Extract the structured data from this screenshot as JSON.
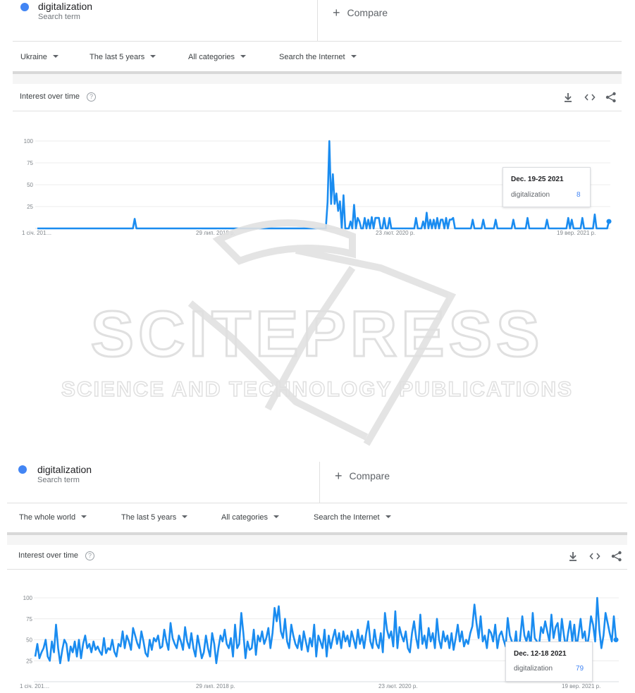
{
  "panels": [
    {
      "term": {
        "name": "digitalization",
        "subtitle": "Search term",
        "color": "#4285f4"
      },
      "compare_label": "Compare",
      "filters": {
        "region": "Ukraine",
        "period": "The last 5 years",
        "category": "All categories",
        "search_type": "Search the Internet"
      },
      "section_title": "Interest over time",
      "tooltip": {
        "date": "Dec. 19-25 2021",
        "term": "digitalization",
        "value": "8"
      },
      "chart_data": {
        "type": "line",
        "title": "Interest over time",
        "x_tick_labels": [
          "1 січ. 201…",
          "29 лип. 2018 р.",
          "23 лют. 2020 р.",
          "19 вер. 2021 р."
        ],
        "y_tick_labels": [
          "100",
          "75",
          "50",
          "25"
        ],
        "ylim": [
          0,
          100
        ],
        "grid": true,
        "series": [
          {
            "name": "digitalization",
            "color": "#1a8cf0",
            "values": [
              0,
              0,
              0,
              0,
              0,
              0,
              0,
              0,
              0,
              0,
              0,
              0,
              0,
              0,
              0,
              0,
              0,
              0,
              0,
              0,
              0,
              0,
              0,
              0,
              0,
              0,
              0,
              0,
              0,
              0,
              0,
              0,
              0,
              0,
              0,
              0,
              0,
              0,
              0,
              0,
              0,
              0,
              0,
              0,
              0,
              0,
              0,
              0,
              0,
              0,
              0,
              0,
              0,
              0,
              0,
              11,
              0,
              0,
              0,
              0,
              0,
              0,
              0,
              0,
              0,
              0,
              0,
              0,
              0,
              0,
              0,
              0,
              0,
              0,
              0,
              0,
              0,
              0,
              0,
              0,
              0,
              0,
              0,
              0,
              0,
              0,
              0,
              0,
              0,
              0,
              0,
              0,
              0,
              0,
              0,
              0,
              0,
              0,
              0,
              0,
              0,
              0,
              0,
              0,
              0,
              0,
              0,
              0,
              0,
              0,
              0,
              0,
              0,
              0,
              0,
              0,
              0,
              0,
              0,
              0,
              0,
              0,
              0,
              0,
              0,
              0,
              0,
              0,
              0,
              0,
              0,
              0,
              0,
              0,
              0,
              0,
              0,
              0,
              0,
              0,
              0,
              0,
              0,
              0,
              0,
              0,
              0,
              0,
              0,
              0,
              0,
              0,
              0,
              0,
              0,
              0,
              0,
              0,
              0,
              0,
              0,
              0,
              0,
              0,
              30,
              100,
              28,
              62,
              28,
              40,
              20,
              31,
              0,
              38,
              0,
              0,
              0,
              8,
              0,
              27,
              0,
              12,
              8,
              0,
              0,
              12,
              0,
              10,
              0,
              13,
              0,
              12,
              12,
              12,
              0,
              0,
              12,
              0,
              0,
              12,
              0,
              0,
              0,
              0,
              0,
              0,
              0,
              0,
              0,
              0,
              0,
              0,
              0,
              0,
              12,
              0,
              0,
              0,
              8,
              0,
              18,
              0,
              10,
              0,
              10,
              0,
              12,
              0,
              10,
              10,
              0,
              12,
              0,
              10,
              10,
              12,
              0,
              0,
              0,
              0,
              0,
              0,
              0,
              0,
              0,
              0,
              10,
              0,
              0,
              0,
              0,
              0,
              10,
              0,
              0,
              0,
              0,
              0,
              0,
              10,
              0,
              0,
              0,
              0,
              0,
              0,
              0,
              0,
              0,
              10,
              0,
              0,
              0,
              0,
              0,
              0,
              0,
              12,
              0,
              0,
              0,
              0,
              0,
              0,
              0,
              0,
              0,
              0,
              10,
              0,
              0,
              0,
              0,
              0,
              0,
              0,
              0,
              0,
              0,
              0,
              12,
              0,
              10,
              0,
              0,
              0,
              0,
              0,
              12,
              0,
              0,
              0,
              0,
              0,
              0,
              16,
              0,
              0,
              0,
              0,
              0,
              0,
              0,
              8
            ]
          }
        ]
      }
    },
    {
      "term": {
        "name": "digitalization",
        "subtitle": "Search term",
        "color": "#4285f4"
      },
      "compare_label": "Compare",
      "filters": {
        "region": "The whole world",
        "period": "The last 5 years",
        "category": "All categories",
        "search_type": "Search the Internet"
      },
      "section_title": "Interest over time",
      "tooltip": {
        "date": "Dec. 12-18 2021",
        "term": "digitalization",
        "value": "79"
      },
      "chart_data": {
        "type": "line",
        "title": "Interest over time",
        "x_tick_labels": [
          "1 січ. 201…",
          "29 лип. 2018 р.",
          "23 лют. 2020 р.",
          "19 вер. 2021 р."
        ],
        "y_tick_labels": [
          "100",
          "75",
          "50",
          "25"
        ],
        "ylim": [
          0,
          100
        ],
        "grid": true,
        "series": [
          {
            "name": "digitalization",
            "color": "#1a8cf0",
            "values": [
              30,
              45,
              28,
              35,
              40,
              50,
              30,
              25,
              48,
              35,
              68,
              40,
              22,
              38,
              50,
              45,
              25,
              42,
              35,
              48,
              30,
              50,
              28,
              45,
              55,
              40,
              45,
              35,
              48,
              38,
              42,
              36,
              32,
              52,
              34,
              40,
              38,
              50,
              36,
              30,
              45,
              42,
              60,
              40,
              55,
              48,
              38,
              64,
              55,
              46,
              40,
              60,
              48,
              34,
              30,
              50,
              38,
              52,
              48,
              55,
              40,
              42,
              62,
              48,
              38,
              70,
              52,
              45,
              40,
              55,
              48,
              38,
              65,
              48,
              40,
              58,
              40,
              30,
              55,
              42,
              28,
              35,
              55,
              40,
              30,
              58,
              45,
              22,
              40,
              55,
              48,
              62,
              45,
              40,
              52,
              30,
              68,
              40,
              45,
              82,
              58,
              28,
              48,
              38,
              40,
              62,
              32,
              55,
              48,
              60,
              45,
              52,
              64,
              40,
              58,
              88,
              72,
              90,
              60,
              52,
              75,
              48,
              40,
              68,
              55,
              45,
              40,
              55,
              38,
              60,
              48,
              36,
              52,
              42,
              68,
              30,
              55,
              48,
              40,
              62,
              30,
              55,
              40,
              52,
              62,
              45,
              58,
              40,
              60,
              48,
              55,
              42,
              60,
              50,
              40,
              62,
              45,
              55,
              40,
              58,
              72,
              48,
              40,
              62,
              45,
              40,
              58,
              35,
              82,
              62,
              52,
              60,
              42,
              84,
              40,
              65,
              55,
              48,
              60,
              40,
              35,
              58,
              72,
              52,
              40,
              80,
              45,
              55,
              40,
              64,
              48,
              58,
              40,
              75,
              50,
              40,
              60,
              48,
              55,
              40,
              58,
              38,
              52,
              68,
              48,
              60,
              42,
              50,
              45,
              58,
              66,
              92,
              70,
              52,
              78,
              48,
              55,
              40,
              62,
              58,
              48,
              68,
              40,
              55,
              60,
              50,
              42,
              76,
              55,
              48,
              40,
              60,
              30,
              52,
              78,
              55,
              48,
              60,
              42,
              82,
              52,
              48,
              42,
              65,
              58,
              72,
              60,
              48,
              80,
              52,
              65,
              70,
              44,
              75,
              55,
              40,
              58,
              72,
              48,
              68,
              40,
              56,
              75,
              52,
              60,
              40,
              55,
              78,
              68,
              48,
              100,
              62,
              40,
              55,
              82,
              70,
              58,
              48,
              78,
              50
            ],
            "tooltip_value": 79
          }
        ]
      }
    }
  ],
  "watermark": {
    "main": "SCITEPRESS",
    "sub": "SCIENCE AND TECHNOLOGY PUBLICATIONS"
  }
}
